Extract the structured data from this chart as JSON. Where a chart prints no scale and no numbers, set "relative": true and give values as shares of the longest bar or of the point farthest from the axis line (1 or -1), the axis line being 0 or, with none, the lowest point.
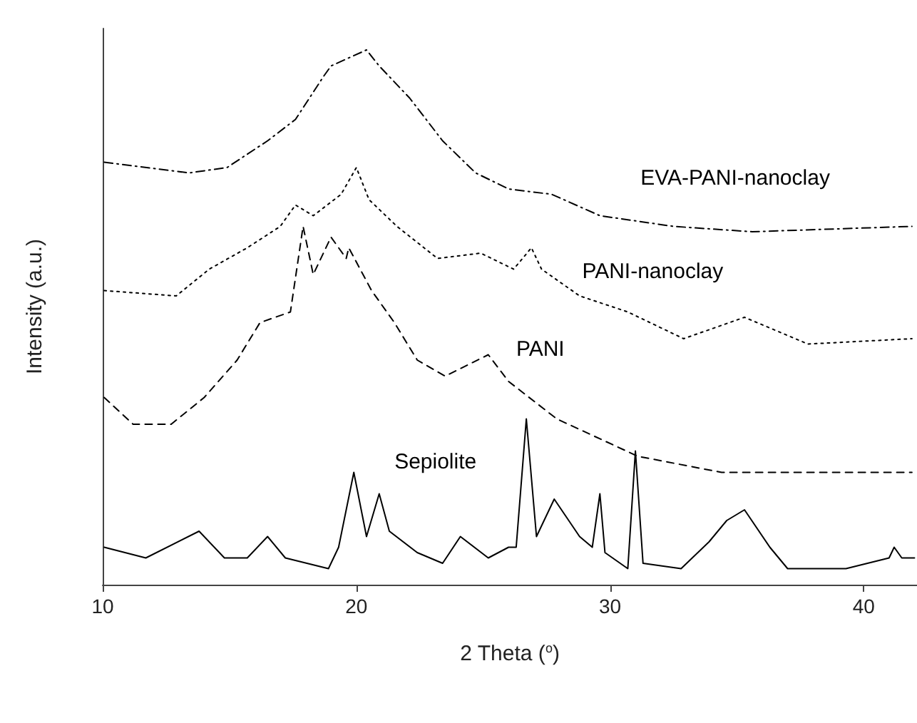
{
  "chart_data": {
    "type": "line",
    "xlabel": "2 Theta ($^{o}$)",
    "ylabel": "Intensity (a.u.)",
    "relative": true,
    "xlim": [
      10,
      42.1
    ],
    "xticks": [
      10,
      20,
      30,
      40
    ],
    "grid": false,
    "legend": false,
    "marker": "none",
    "series": [
      {
        "name": "EVA-PANI-nanoclay",
        "color": "#000000",
        "line_style": "dashed",
        "x": [
          10.06,
          13.4,
          14.9,
          16.5,
          17.6,
          18.7,
          19.0,
          20.4,
          20.9,
          22.1,
          23.4,
          24.7,
          26.0,
          27.7,
          29.6,
          32.5,
          35.6,
          41.9
        ],
        "values": [
          0.79,
          0.77,
          0.78,
          0.83,
          0.87,
          0.95,
          0.97,
          1.0,
          0.97,
          0.91,
          0.83,
          0.77,
          0.74,
          0.73,
          0.69,
          0.67,
          0.66,
          0.67
        ]
      },
      {
        "name": "PANI-nanoclay",
        "color": "#000000",
        "line_style": "dotted",
        "x": [
          10.06,
          12.9,
          14.2,
          15.7,
          17.0,
          17.6,
          18.3,
          19.4,
          20.0,
          20.5,
          21.6,
          23.2,
          24.9,
          26.2,
          26.9,
          27.3,
          28.8,
          30.7,
          32.9,
          35.3,
          37.8,
          41.9
        ],
        "values": [
          0.55,
          0.54,
          0.59,
          0.63,
          0.67,
          0.71,
          0.69,
          0.73,
          0.78,
          0.72,
          0.67,
          0.61,
          0.62,
          0.59,
          0.63,
          0.59,
          0.54,
          0.51,
          0.46,
          0.5,
          0.45,
          0.46
        ]
      },
      {
        "name": "PANI",
        "color": "#000000",
        "line_style": "dashed",
        "x": [
          10.06,
          11.2,
          12.7,
          14.0,
          15.3,
          16.2,
          17.4,
          17.9,
          18.3,
          19.0,
          19.6,
          19.7,
          20.6,
          21.5,
          22.4,
          23.5,
          25.2,
          26.0,
          27.9,
          31.1,
          34.4,
          41.9
        ],
        "values": [
          0.35,
          0.3,
          0.3,
          0.35,
          0.42,
          0.49,
          0.51,
          0.67,
          0.58,
          0.65,
          0.61,
          0.63,
          0.55,
          0.49,
          0.42,
          0.39,
          0.43,
          0.38,
          0.31,
          0.24,
          0.21,
          0.21
        ]
      },
      {
        "name": "Sepiolite",
        "color": "#000000",
        "line_style": "solid",
        "x": [
          10.06,
          11.7,
          13.8,
          14.8,
          15.7,
          16.5,
          17.2,
          18.9,
          19.3,
          19.9,
          20.4,
          20.9,
          21.3,
          22.4,
          23.4,
          24.1,
          25.2,
          26.0,
          26.3,
          26.7,
          27.1,
          27.8,
          28.8,
          29.3,
          29.6,
          29.8,
          30.7,
          31.0,
          31.3,
          32.8,
          33.9,
          34.6,
          35.3,
          36.3,
          37.0,
          39.3,
          41.0,
          41.2,
          41.5,
          42.0
        ],
        "values": [
          0.07,
          0.05,
          0.1,
          0.05,
          0.05,
          0.09,
          0.05,
          0.03,
          0.07,
          0.21,
          0.09,
          0.17,
          0.1,
          0.06,
          0.04,
          0.09,
          0.05,
          0.07,
          0.07,
          0.31,
          0.09,
          0.16,
          0.09,
          0.07,
          0.17,
          0.06,
          0.03,
          0.25,
          0.04,
          0.03,
          0.08,
          0.12,
          0.14,
          0.07,
          0.03,
          0.03,
          0.05,
          0.07,
          0.05,
          0.05
        ]
      }
    ]
  }
}
